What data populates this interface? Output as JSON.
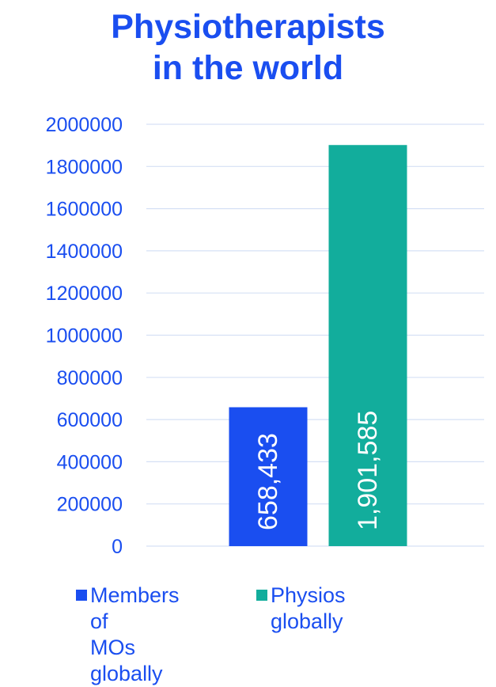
{
  "chart_data": {
    "type": "bar",
    "title_lines": [
      "Physiotherapists",
      "in the world"
    ],
    "categories": [
      "Members of MOs globally",
      "Physios globally"
    ],
    "series": [
      {
        "name": "Members of MOs globally",
        "value": 658433,
        "data_label": "658,433",
        "color": "#1a4ef0"
      },
      {
        "name": "Physios globally",
        "value": 1901585,
        "data_label": "1,901,585",
        "color": "#12ad9c"
      }
    ],
    "ylim": [
      0,
      2000000
    ],
    "y_ticks": [
      "0",
      "200000",
      "400000",
      "600000",
      "800000",
      "1000000",
      "1200000",
      "1400000",
      "1600000",
      "1800000",
      "2000000"
    ],
    "grid": true,
    "legend_position": "bottom",
    "legend_lines": [
      [
        "Members of",
        "MOs globally"
      ],
      [
        "Physios globally"
      ]
    ],
    "text_color": "#1a4ef0",
    "grid_color": "#d6e0f5"
  }
}
